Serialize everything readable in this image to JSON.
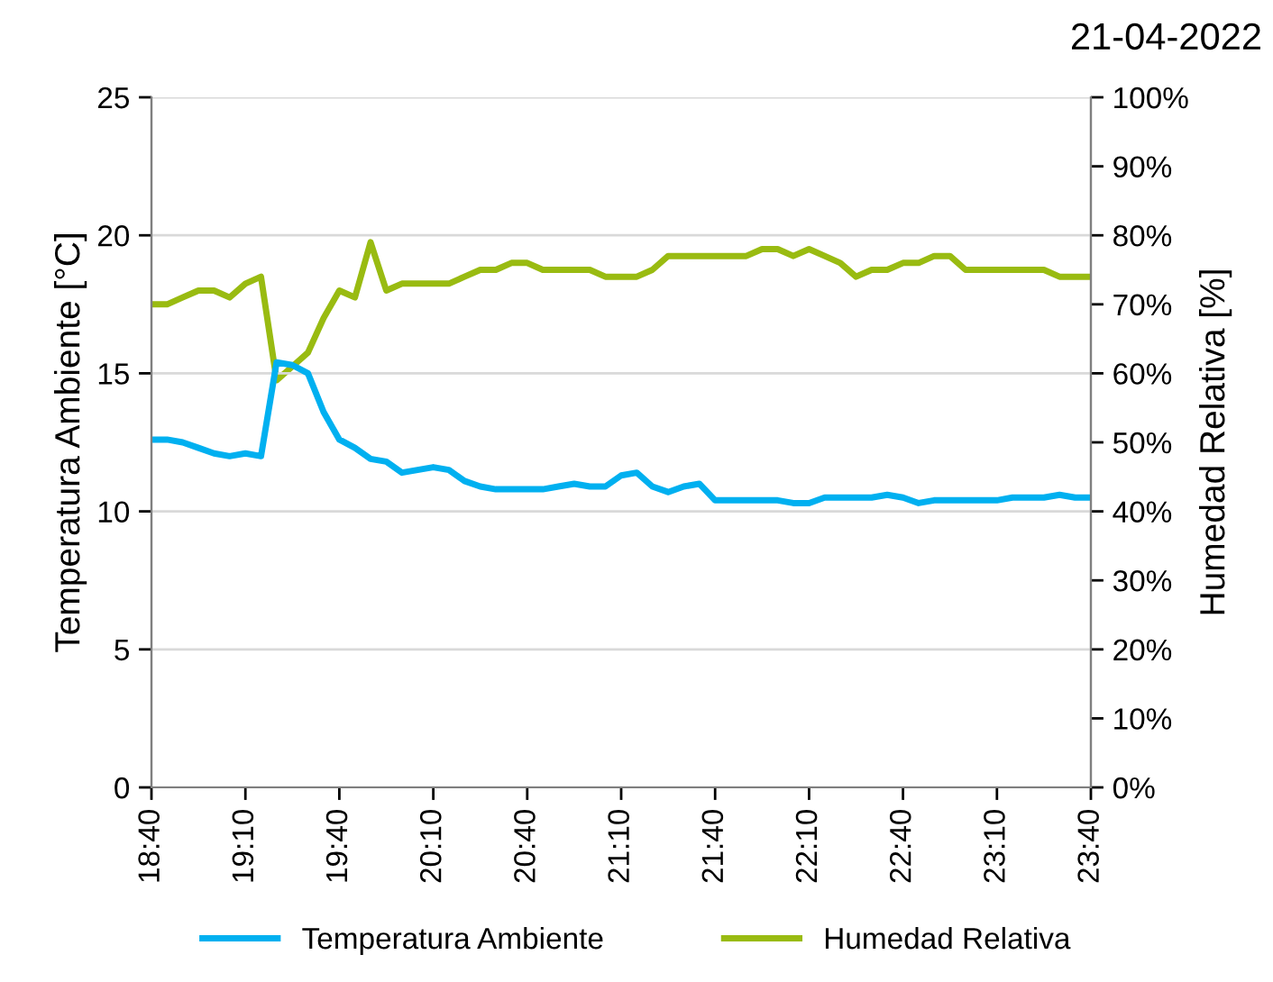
{
  "chart_data": {
    "type": "line",
    "ylabel": "Temperatura Ambiente [°C]",
    "y2label": "Humedad Relativa [%]",
    "annotations": [
      "21-04-2022"
    ],
    "x": [
      18.667,
      18.75,
      18.833,
      18.917,
      19,
      19.083,
      19.167,
      19.25,
      19.333,
      19.417,
      19.5,
      19.583,
      19.667,
      19.75,
      19.833,
      19.917,
      20,
      20.083,
      20.167,
      20.25,
      20.333,
      20.417,
      20.5,
      20.583,
      20.667,
      20.75,
      20.833,
      20.917,
      21,
      21.083,
      21.167,
      21.25,
      21.333,
      21.417,
      21.5,
      21.583,
      21.667,
      21.75,
      21.833,
      21.917,
      22,
      22.083,
      22.167,
      22.25,
      22.333,
      22.417,
      22.5,
      22.583,
      22.667,
      22.75,
      22.833,
      22.917,
      23,
      23.083,
      23.167,
      23.25,
      23.333,
      23.417,
      23.5,
      23.583,
      23.667
    ],
    "series": [
      {
        "name": "Temperatura Ambiente",
        "color": "#00b0f0",
        "values": [
          12.6,
          12.6,
          12.5,
          12.3,
          12.1,
          12.0,
          12.1,
          12.0,
          15.4,
          15.3,
          15.0,
          13.6,
          12.6,
          12.3,
          11.9,
          11.8,
          11.4,
          11.5,
          11.6,
          11.5,
          11.1,
          10.9,
          10.8,
          10.8,
          10.8,
          10.8,
          10.9,
          11.0,
          10.9,
          10.9,
          11.3,
          11.4,
          10.9,
          10.7,
          10.9,
          11.0,
          10.4,
          10.4,
          10.4,
          10.4,
          10.4,
          10.3,
          10.3,
          10.5,
          10.5,
          10.5,
          10.5,
          10.6,
          10.5,
          10.3,
          10.4,
          10.4,
          10.4,
          10.4,
          10.4,
          10.5,
          10.5,
          10.5,
          10.6,
          10.5,
          10.5
        ]
      },
      {
        "name": "Humedad Relativa",
        "color": "#99bb11",
        "axis": "y2",
        "values": [
          70,
          70,
          71,
          72,
          72,
          71,
          73,
          74,
          59,
          61,
          63,
          68,
          72,
          71,
          79,
          72,
          73,
          73,
          73,
          73,
          74,
          75,
          75,
          76,
          76,
          75,
          75,
          75,
          75,
          74,
          74,
          74,
          75,
          77,
          77,
          77,
          77,
          77,
          77,
          78,
          78,
          77,
          78,
          77,
          76,
          74,
          75,
          75,
          76,
          76,
          77,
          77,
          75,
          75,
          75,
          75,
          75,
          75,
          74,
          74,
          74
        ]
      }
    ],
    "xlim": [
      18.667,
      23.667
    ],
    "xticks": [
      {
        "value": 18.667,
        "label": "18:40"
      },
      {
        "value": 19.167,
        "label": "19:10"
      },
      {
        "value": 19.667,
        "label": "19:40"
      },
      {
        "value": 20.167,
        "label": "20:10"
      },
      {
        "value": 20.667,
        "label": "20:40"
      },
      {
        "value": 21.167,
        "label": "21:10"
      },
      {
        "value": 21.667,
        "label": "21:40"
      },
      {
        "value": 22.167,
        "label": "22:10"
      },
      {
        "value": 22.667,
        "label": "22:40"
      },
      {
        "value": 23.167,
        "label": "23:10"
      },
      {
        "value": 23.667,
        "label": "23:40"
      }
    ],
    "ylim": [
      0,
      25
    ],
    "yticks": [
      0,
      5,
      10,
      15,
      20,
      25
    ],
    "y2lim": [
      0,
      100
    ],
    "y2ticks": [
      {
        "value": 0,
        "label": "0%"
      },
      {
        "value": 10,
        "label": "10%"
      },
      {
        "value": 20,
        "label": "20%"
      },
      {
        "value": 30,
        "label": "30%"
      },
      {
        "value": 40,
        "label": "40%"
      },
      {
        "value": 50,
        "label": "50%"
      },
      {
        "value": 60,
        "label": "60%"
      },
      {
        "value": 70,
        "label": "70%"
      },
      {
        "value": 80,
        "label": "80%"
      },
      {
        "value": 90,
        "label": "90%"
      },
      {
        "value": 100,
        "label": "100%"
      }
    ],
    "grid": "y",
    "legend": "bottom",
    "marker": "none",
    "line_style": "solid"
  }
}
